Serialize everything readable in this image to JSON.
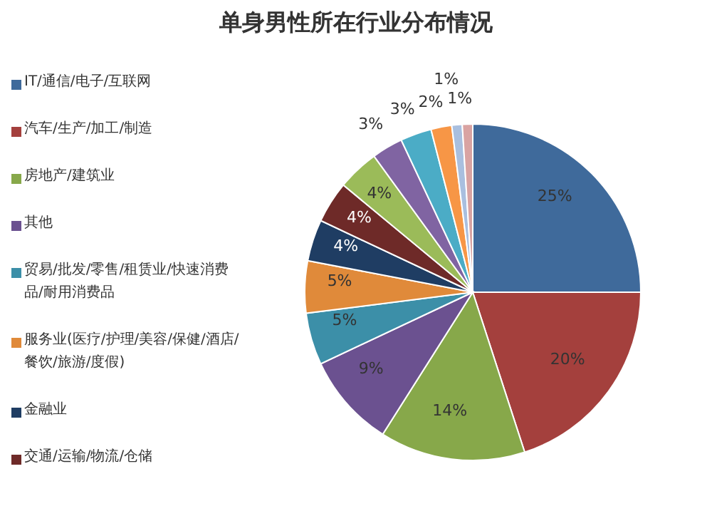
{
  "chart_data": {
    "type": "pie",
    "title": "单身男性所在行业分布情况",
    "categories": [
      "IT/通信/电子/互联网",
      "汽车/生产/加工/制造",
      "房地产/建筑业",
      "其他",
      "贸易/批发/零售/租赁业/快速消费品/耐用消费品",
      "服务业(医疗/护理/美容/保健/酒店/餐饮/旅游/度假)",
      "金融业",
      "交通/运输/物流/仓储",
      null,
      null,
      null,
      null,
      null,
      null
    ],
    "values": [
      25,
      20,
      14,
      9,
      5,
      5,
      4,
      4,
      4,
      3,
      3,
      2,
      1,
      1
    ],
    "value_labels": [
      "25%",
      "20%",
      "14%",
      "9%",
      "5%",
      "5%",
      "4%",
      "4%",
      "4%",
      "3%",
      "3%",
      "2%",
      "1%",
      "1%"
    ],
    "colors": [
      "#3f6a9b",
      "#a4403d",
      "#87a84a",
      "#6b5190",
      "#3c8fa8",
      "#e08a3a",
      "#1f3d63",
      "#6e2a28",
      "#9bbb59",
      "#8064a2",
      "#4bacc6",
      "#f79646",
      "#a9bfdf",
      "#d9a3a2"
    ],
    "legend": "left"
  }
}
